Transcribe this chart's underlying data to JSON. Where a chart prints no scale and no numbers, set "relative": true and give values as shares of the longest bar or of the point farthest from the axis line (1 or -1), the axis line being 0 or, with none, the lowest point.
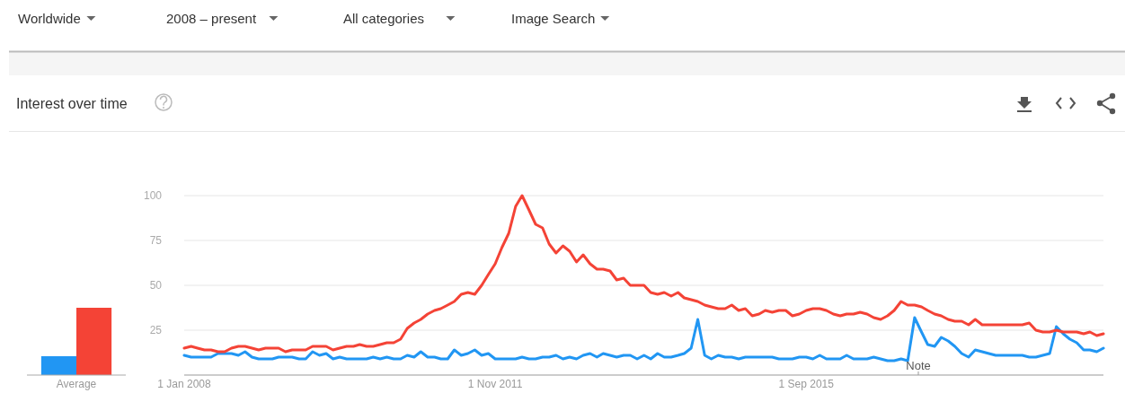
{
  "chart_data": [
    {
      "type": "bar",
      "relative": true,
      "categories": [
        "Average"
      ],
      "series": [
        {
          "color": "#2196f3",
          "values": [
            0.28
          ]
        },
        {
          "color": "#f44336",
          "values": [
            1
          ]
        }
      ]
    },
    {
      "type": "line",
      "title": "Interest over time",
      "annotations": [
        "Worldwide",
        "2008 – present",
        "All categories",
        "Image Search",
        "Note"
      ],
      "x": [
        "2008-01",
        "2008-02",
        "2008-03",
        "2008-04",
        "2008-05",
        "2008-06",
        "2008-07",
        "2008-08",
        "2008-09",
        "2008-10",
        "2008-11",
        "2008-12",
        "2009-01",
        "2009-02",
        "2009-03",
        "2009-04",
        "2009-05",
        "2009-06",
        "2009-07",
        "2009-08",
        "2009-09",
        "2009-10",
        "2009-11",
        "2009-12",
        "2010-01",
        "2010-02",
        "2010-03",
        "2010-04",
        "2010-05",
        "2010-06",
        "2010-07",
        "2010-08",
        "2010-09",
        "2010-10",
        "2010-11",
        "2010-12",
        "2011-01",
        "2011-02",
        "2011-03",
        "2011-04",
        "2011-05",
        "2011-06",
        "2011-07",
        "2011-08",
        "2011-09",
        "2011-10",
        "2011-11",
        "2011-12",
        "2012-01",
        "2012-02",
        "2012-03",
        "2012-04",
        "2012-05",
        "2012-06",
        "2012-07",
        "2012-08",
        "2012-09",
        "2012-10",
        "2012-11",
        "2012-12",
        "2013-01",
        "2013-02",
        "2013-03",
        "2013-04",
        "2013-05",
        "2013-06",
        "2013-07",
        "2013-08",
        "2013-09",
        "2013-10",
        "2013-11",
        "2013-12",
        "2014-01",
        "2014-02",
        "2014-03",
        "2014-04",
        "2014-05",
        "2014-06",
        "2014-07",
        "2014-08",
        "2014-09",
        "2014-10",
        "2014-11",
        "2014-12",
        "2015-01",
        "2015-02",
        "2015-03",
        "2015-04",
        "2015-05",
        "2015-06",
        "2015-07",
        "2015-08",
        "2015-09",
        "2015-10",
        "2015-11",
        "2015-12",
        "2016-01",
        "2016-02",
        "2016-03",
        "2016-04",
        "2016-05",
        "2016-06",
        "2016-07",
        "2016-08",
        "2016-09",
        "2016-10",
        "2016-11",
        "2016-12",
        "2017-01",
        "2017-02",
        "2017-03",
        "2017-04",
        "2017-05",
        "2017-06",
        "2017-07",
        "2017-08",
        "2017-09",
        "2017-10",
        "2017-11",
        "2017-12",
        "2018-01",
        "2018-02",
        "2018-03",
        "2018-04",
        "2018-05",
        "2018-06",
        "2018-07",
        "2018-08",
        "2018-09",
        "2018-10",
        "2018-11",
        "2018-12",
        "2019-01",
        "2019-02",
        "2019-03",
        "2019-04",
        "2019-05"
      ],
      "xlim": [
        "2008-01",
        "2019-05"
      ],
      "xticks": [
        {
          "value": "2008-01-01",
          "label": "1 Jan 2008"
        },
        {
          "value": "2011-11-01",
          "label": "1 Nov 2011"
        },
        {
          "value": "2015-09-01",
          "label": "1 Sep 2015"
        }
      ],
      "ylim": [
        0,
        100
      ],
      "yticks": [
        25,
        50,
        75,
        100
      ],
      "grid": "y",
      "series": [
        {
          "color": "#2196f3",
          "values": [
            11,
            10,
            10,
            10,
            10,
            12,
            12,
            12,
            11,
            13,
            10,
            9,
            9,
            9,
            10,
            10,
            10,
            9,
            9,
            13,
            11,
            12,
            9,
            10,
            9,
            9,
            9,
            9,
            10,
            9,
            10,
            9,
            9,
            11,
            10,
            13,
            10,
            10,
            9,
            9,
            14,
            11,
            12,
            14,
            11,
            12,
            9,
            9,
            9,
            9,
            10,
            9,
            9,
            10,
            10,
            11,
            9,
            10,
            9,
            11,
            12,
            10,
            12,
            11,
            10,
            11,
            11,
            9,
            11,
            9,
            12,
            10,
            10,
            11,
            12,
            15,
            31,
            11,
            9,
            11,
            10,
            10,
            9,
            10,
            10,
            10,
            10,
            10,
            9,
            9,
            9,
            10,
            10,
            9,
            11,
            9,
            9,
            9,
            11,
            9,
            9,
            9,
            10,
            9,
            8,
            8,
            9,
            8,
            32,
            24,
            17,
            16,
            21,
            19,
            16,
            12,
            10,
            14,
            13,
            12,
            11,
            11,
            11,
            11,
            11,
            10,
            10,
            11,
            12,
            27,
            23,
            20,
            18,
            14,
            14,
            13,
            15
          ]
        },
        {
          "color": "#f44336",
          "values": [
            15,
            16,
            15,
            14,
            14,
            13,
            13,
            15,
            16,
            16,
            15,
            14,
            15,
            15,
            15,
            13,
            14,
            14,
            14,
            16,
            16,
            16,
            14,
            15,
            16,
            16,
            17,
            16,
            16,
            17,
            18,
            18,
            20,
            26,
            29,
            31,
            34,
            36,
            37,
            39,
            41,
            45,
            46,
            45,
            50,
            56,
            62,
            71,
            79,
            94,
            100,
            92,
            84,
            82,
            73,
            68,
            72,
            69,
            63,
            67,
            62,
            59,
            59,
            58,
            53,
            54,
            50,
            50,
            50,
            46,
            45,
            46,
            44,
            46,
            43,
            42,
            41,
            39,
            38,
            37,
            37,
            39,
            36,
            37,
            33,
            34,
            36,
            35,
            36,
            36,
            33,
            34,
            36,
            37,
            37,
            36,
            34,
            33,
            34,
            34,
            35,
            34,
            32,
            31,
            33,
            36,
            41,
            39,
            39,
            38,
            36,
            34,
            33,
            31,
            30,
            30,
            28,
            31,
            28,
            28,
            28,
            28,
            28,
            28,
            28,
            29,
            25,
            24,
            24,
            25,
            24,
            24,
            24,
            23,
            24,
            22,
            23
          ]
        }
      ]
    }
  ]
}
